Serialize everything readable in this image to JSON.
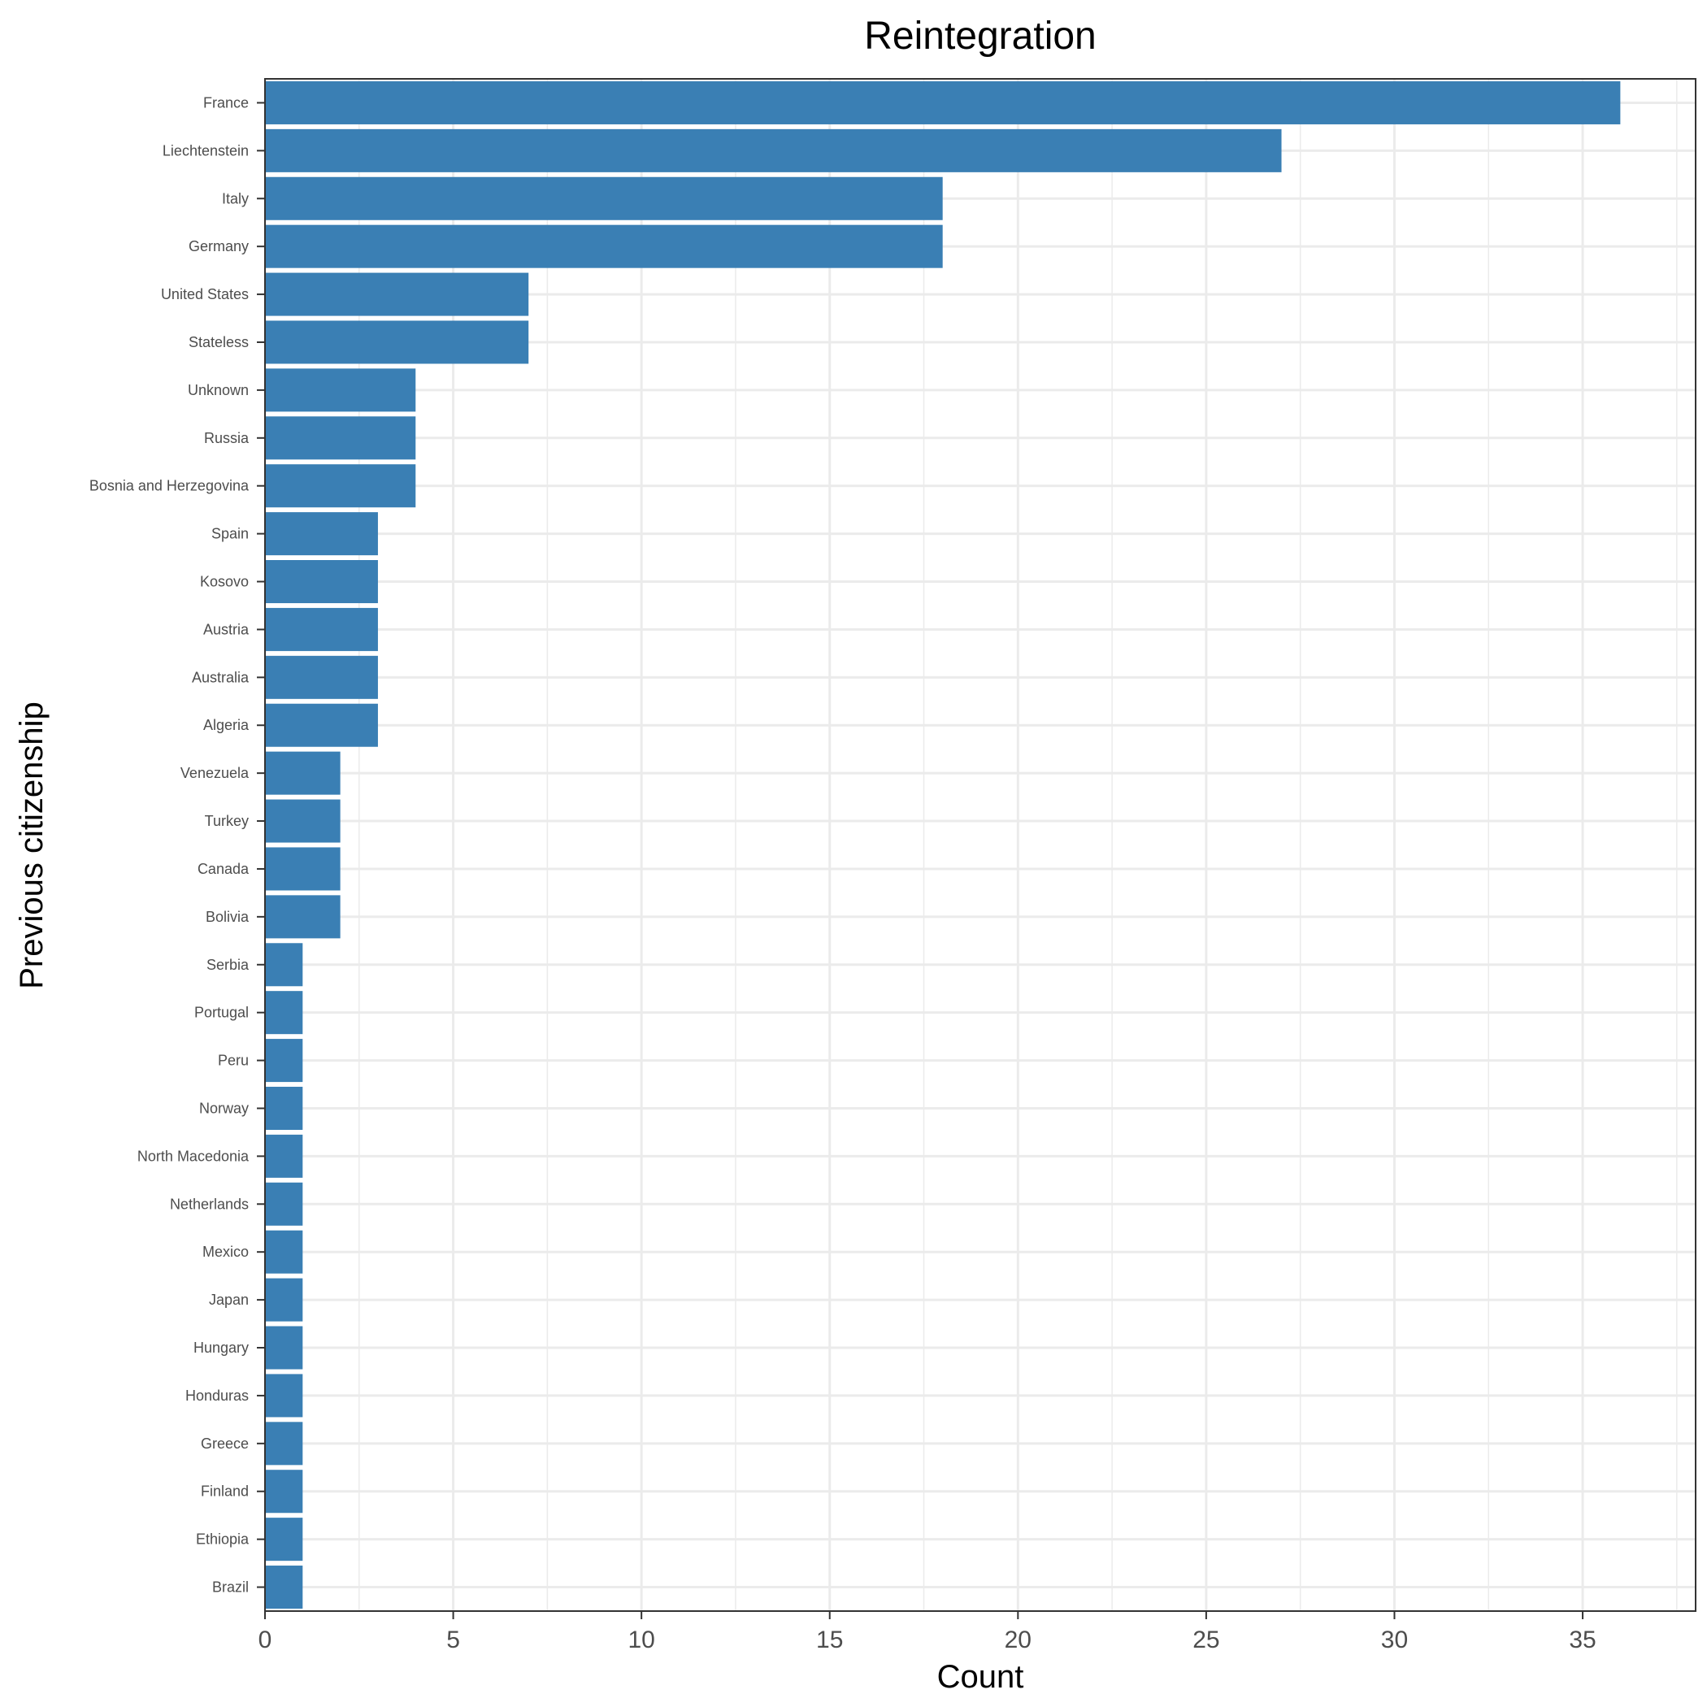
{
  "chart_data": {
    "type": "bar",
    "orientation": "horizontal",
    "title": "Reintegration",
    "xlabel": "Count",
    "ylabel": "Previous citizenship",
    "xlim": [
      0,
      38
    ],
    "x_ticks": [
      0,
      5,
      10,
      15,
      20,
      25,
      30,
      35
    ],
    "grid": true,
    "bar_color": "#3a7fb4",
    "categories": [
      "France",
      "Liechtenstein",
      "Italy",
      "Germany",
      "United States",
      "Stateless",
      "Unknown",
      "Russia",
      "Bosnia and Herzegovina",
      "Spain",
      "Kosovo",
      "Austria",
      "Australia",
      "Algeria",
      "Venezuela",
      "Turkey",
      "Canada",
      "Bolivia",
      "Serbia",
      "Portugal",
      "Peru",
      "Norway",
      "North Macedonia",
      "Netherlands",
      "Mexico",
      "Japan",
      "Hungary",
      "Honduras",
      "Greece",
      "Finland",
      "Ethiopia",
      "Brazil"
    ],
    "values": [
      36,
      27,
      18,
      18,
      7,
      7,
      4,
      4,
      4,
      3,
      3,
      3,
      3,
      3,
      2,
      2,
      2,
      2,
      1,
      1,
      1,
      1,
      1,
      1,
      1,
      1,
      1,
      1,
      1,
      1,
      1,
      1
    ]
  }
}
